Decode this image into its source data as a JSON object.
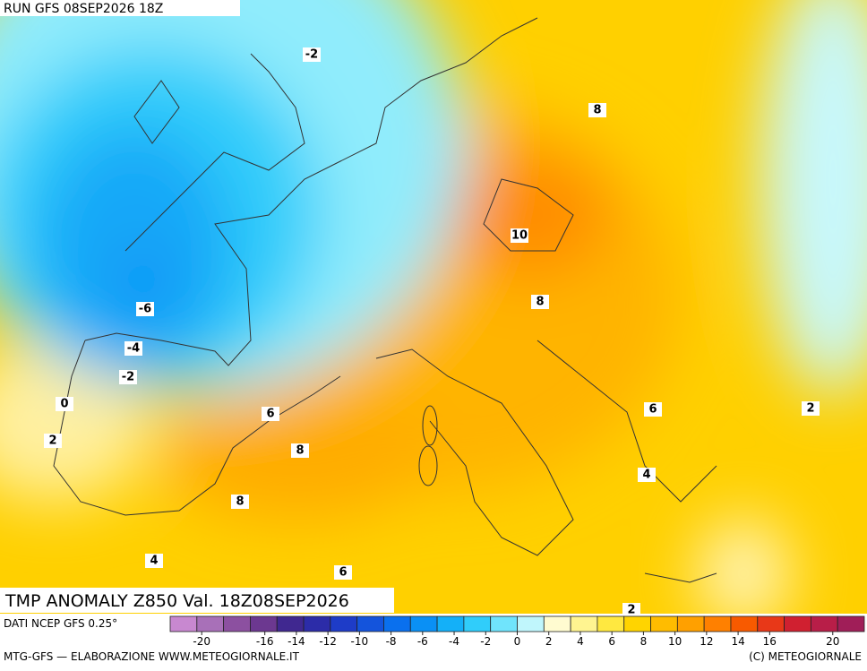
{
  "header": {
    "run": "RUN GFS 08SEP2026 18Z"
  },
  "title": "TMP ANOMALY Z850 Val. 18Z08SEP2026",
  "source": "DATI NCEP GFS 0.25°",
  "credit": "MTG-GFS — ELABORAZIONE WWW.METEOGIORNALE.IT",
  "copyright": "(C) METEOGIORNALE",
  "contour_labels": [
    "-2",
    "8",
    "10",
    "-6",
    "-4",
    "-2",
    "8",
    "0",
    "6",
    "2",
    "6",
    "2",
    "8",
    "8",
    "4",
    "4",
    "6",
    "2"
  ],
  "colorbar": {
    "range": [
      -22,
      22
    ],
    "colors": [
      "#c888d0",
      "#a870b8",
      "#8c50a0",
      "#6c3890",
      "#402890",
      "#2c2ca8",
      "#1e3cc8",
      "#1454dc",
      "#0a70ee",
      "#0a90f5",
      "#14b0f8",
      "#30cdfa",
      "#70e4fc",
      "#c0f6fc",
      "#fffbd0",
      "#fff490",
      "#ffe840",
      "#ffd400",
      "#ffbc00",
      "#ffa000",
      "#ff8000",
      "#f85a00",
      "#e83818",
      "#d02030",
      "#b81e48",
      "#a01e58"
    ],
    "ticks": [
      -20,
      -16,
      -14,
      -12,
      -10,
      -8,
      -6,
      -4,
      -2,
      0,
      2,
      4,
      6,
      8,
      10,
      12,
      14,
      16,
      20
    ]
  }
}
